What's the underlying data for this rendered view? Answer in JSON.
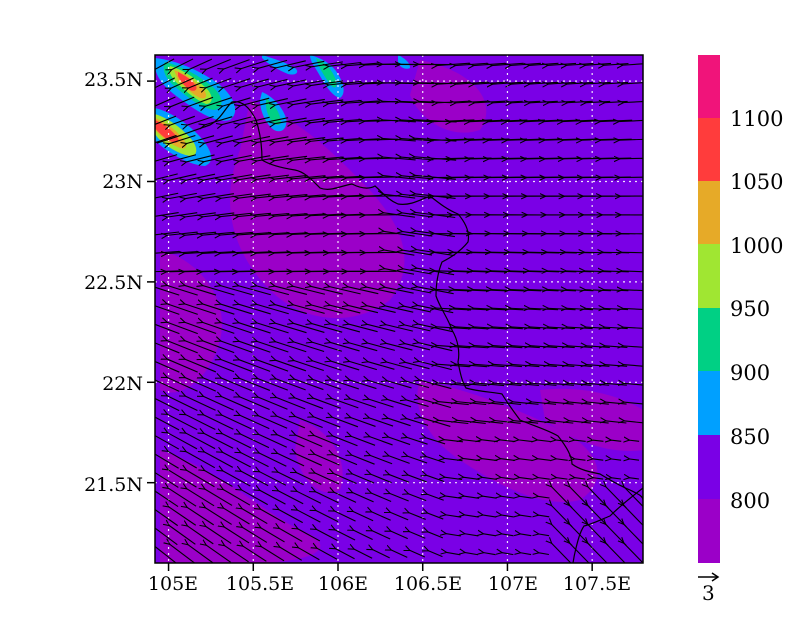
{
  "chart_data": {
    "type": "heatmap",
    "title": "",
    "colorbar": {
      "labels": [
        "800",
        "850",
        "900",
        "950",
        "1000",
        "1050",
        "1100"
      ],
      "colors": [
        "#9b00c8",
        "#7a00e6",
        "#00a0ff",
        "#00d084",
        "#a0e632",
        "#e6aa28",
        "#ff3c3c",
        "#f0147a"
      ]
    },
    "x_ticks": [
      "105E",
      "105.5E",
      "106E",
      "106.5E",
      "107E",
      "107.5E"
    ],
    "x_tick_values": [
      105.0,
      105.5,
      106.0,
      106.5,
      107.0,
      107.5
    ],
    "y_ticks": [
      "23.5N",
      "23N",
      "22.5N",
      "22N",
      "21.5N"
    ],
    "y_tick_values": [
      23.5,
      23.0,
      22.5,
      22.0,
      21.5
    ],
    "lon_range": [
      104.92,
      107.8
    ],
    "lat_range": [
      21.1,
      23.63
    ],
    "grid": "dotted",
    "reference_vector_label": "3",
    "features": [
      "filled contours",
      "wind vectors",
      "border line"
    ]
  }
}
